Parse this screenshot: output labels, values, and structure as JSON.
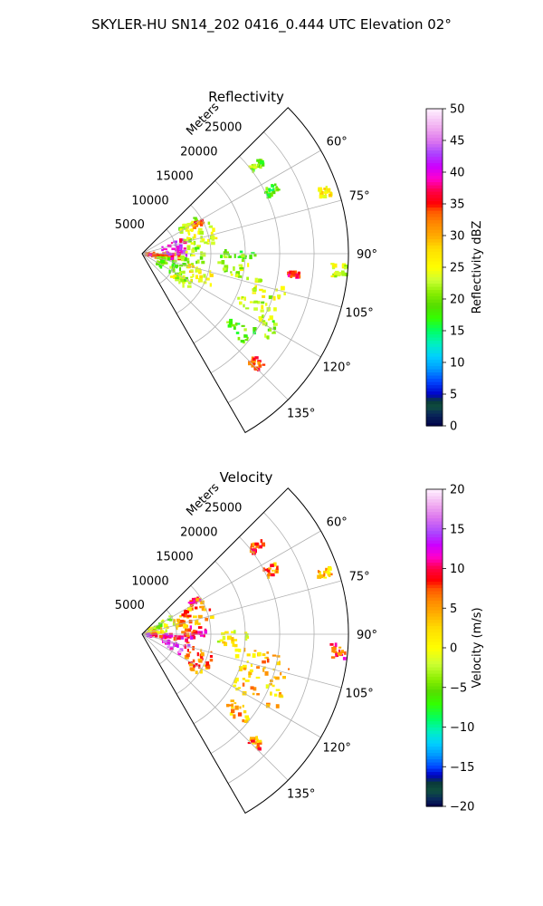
{
  "suptitle": "SKYLER-HU  SN14_202  0416_0.444 UTC Elevation 02°",
  "chart_data": [
    {
      "type": "polar-sector",
      "title": "Reflectivity",
      "theta_range_deg": [
        45,
        150
      ],
      "theta_ticks": [
        "60°",
        "75°",
        "90°",
        "105°",
        "120°",
        "135°"
      ],
      "r_range_m": [
        0,
        30000
      ],
      "r_ticks": [
        "5000",
        "10000",
        "15000",
        "20000",
        "25000"
      ],
      "r_label": "Meters",
      "grid": true,
      "colorbar": {
        "label": "Reflectivity dBZ",
        "range": [
          0,
          50
        ],
        "ticks": [
          "0",
          "5",
          "10",
          "15",
          "20",
          "25",
          "30",
          "35",
          "40",
          "45",
          "50"
        ],
        "stops": [
          {
            "value": 0,
            "color": "#00004a"
          },
          {
            "value": 2,
            "color": "#0a2a5a"
          },
          {
            "value": 3,
            "color": "#0f4f3f"
          },
          {
            "value": 4,
            "color": "#0a3a3a"
          },
          {
            "value": 5,
            "color": "#0000c8"
          },
          {
            "value": 7,
            "color": "#0044ff"
          },
          {
            "value": 9,
            "color": "#0099ff"
          },
          {
            "value": 11,
            "color": "#00d0ff"
          },
          {
            "value": 13,
            "color": "#00f0c0"
          },
          {
            "value": 15,
            "color": "#00ff66"
          },
          {
            "value": 17,
            "color": "#33ff00"
          },
          {
            "value": 19,
            "color": "#55dd00"
          },
          {
            "value": 21,
            "color": "#88ee00"
          },
          {
            "value": 23,
            "color": "#ccff33"
          },
          {
            "value": 25,
            "color": "#ffff00"
          },
          {
            "value": 28,
            "color": "#ffdd00"
          },
          {
            "value": 30,
            "color": "#ffaa00"
          },
          {
            "value": 32,
            "color": "#ff8800"
          },
          {
            "value": 34,
            "color": "#ff5500"
          },
          {
            "value": 35,
            "color": "#ff0000"
          },
          {
            "value": 37,
            "color": "#ff0044"
          },
          {
            "value": 39,
            "color": "#ff00cc"
          },
          {
            "value": 41,
            "color": "#cc00ff"
          },
          {
            "value": 43,
            "color": "#aa44ff"
          },
          {
            "value": 45,
            "color": "#dd77ee"
          },
          {
            "value": 47,
            "color": "#f0aaf0"
          },
          {
            "value": 50,
            "color": "#fff0ff"
          }
        ]
      },
      "regions": [
        {
          "theta": [
            88,
            104
          ],
          "r": [
            500,
            5500
          ],
          "value": 33
        },
        {
          "theta": [
            70,
            92
          ],
          "r": [
            3000,
            6500
          ],
          "value": 41
        },
        {
          "theta": [
            92,
            102
          ],
          "r": [
            1000,
            4500
          ],
          "value": 36
        },
        {
          "theta": [
            62,
            84
          ],
          "r": [
            6500,
            11000
          ],
          "value": 23
        },
        {
          "theta": [
            84,
            99
          ],
          "r": [
            5500,
            9000
          ],
          "value": 21
        },
        {
          "theta": [
            100,
            125
          ],
          "r": [
            2500,
            7500
          ],
          "value": 20
        },
        {
          "theta": [
            104,
            118
          ],
          "r": [
            7000,
            11000
          ],
          "value": 26
        },
        {
          "theta": [
            118,
            128
          ],
          "r": [
            5000,
            9000
          ],
          "value": 24
        },
        {
          "theta": [
            56,
            62
          ],
          "r": [
            6500,
            9500
          ],
          "value": 22
        },
        {
          "theta": [
            60,
            64
          ],
          "r": [
            8500,
            10000
          ],
          "value": 33
        },
        {
          "theta": [
            88,
            94
          ],
          "r": [
            11500,
            16500
          ],
          "value": 19
        },
        {
          "theta": [
            96,
            104
          ],
          "r": [
            11000,
            16000
          ],
          "value": 22
        },
        {
          "theta": [
            102,
            110
          ],
          "r": [
            17000,
            22000
          ],
          "value": 24
        },
        {
          "theta": [
            112,
            118
          ],
          "r": [
            15000,
            21000
          ],
          "value": 23
        },
        {
          "theta": [
            116,
            124
          ],
          "r": [
            19500,
            22500
          ],
          "value": 21
        },
        {
          "theta": [
            93,
            97
          ],
          "r": [
            27500,
            30000
          ],
          "value": 24
        },
        {
          "theta": [
            70,
            73
          ],
          "r": [
            27000,
            29000
          ],
          "value": 27
        },
        {
          "theta": [
            62,
            66
          ],
          "r": [
            20000,
            22000
          ],
          "value": 18
        },
        {
          "theta": [
            51,
            54
          ],
          "r": [
            20000,
            22000
          ],
          "value": 20
        },
        {
          "theta": [
            125,
            132
          ],
          "r": [
            16000,
            20000
          ],
          "value": 19
        },
        {
          "theta": [
            132,
            136
          ],
          "r": [
            22000,
            24000
          ],
          "value": 34
        },
        {
          "theta": [
            97,
            99
          ],
          "r": [
            21500,
            23000
          ],
          "value": 36
        }
      ]
    },
    {
      "type": "polar-sector",
      "title": "Velocity",
      "theta_range_deg": [
        45,
        150
      ],
      "theta_ticks": [
        "60°",
        "75°",
        "90°",
        "105°",
        "120°",
        "135°"
      ],
      "r_range_m": [
        0,
        30000
      ],
      "r_ticks": [
        "5000",
        "10000",
        "15000",
        "20000",
        "25000"
      ],
      "r_label": "Meters",
      "grid": true,
      "colorbar": {
        "label": "Velocity (m/s)",
        "range": [
          -20,
          20
        ],
        "ticks": [
          "−20",
          "−15",
          "−10",
          "−5",
          "0",
          "5",
          "10",
          "15",
          "20"
        ],
        "stops": [
          {
            "value": -20,
            "color": "#00004a"
          },
          {
            "value": -19,
            "color": "#0a2a5a"
          },
          {
            "value": -18,
            "color": "#0f4f3f"
          },
          {
            "value": -17,
            "color": "#0a3a3a"
          },
          {
            "value": -16,
            "color": "#0000c8"
          },
          {
            "value": -15,
            "color": "#0044ff"
          },
          {
            "value": -13.5,
            "color": "#0099ff"
          },
          {
            "value": -12,
            "color": "#00d0ff"
          },
          {
            "value": -10.5,
            "color": "#00f0c0"
          },
          {
            "value": -9,
            "color": "#00ff66"
          },
          {
            "value": -7,
            "color": "#33ff00"
          },
          {
            "value": -5.5,
            "color": "#55dd00"
          },
          {
            "value": -4,
            "color": "#88ee00"
          },
          {
            "value": -2,
            "color": "#ccff33"
          },
          {
            "value": 0,
            "color": "#ffff00"
          },
          {
            "value": 2.5,
            "color": "#ffdd00"
          },
          {
            "value": 4.5,
            "color": "#ffaa00"
          },
          {
            "value": 6,
            "color": "#ff8800"
          },
          {
            "value": 7.5,
            "color": "#ff5500"
          },
          {
            "value": 8.5,
            "color": "#ff0000"
          },
          {
            "value": 10,
            "color": "#ff0044"
          },
          {
            "value": 11.5,
            "color": "#ff00cc"
          },
          {
            "value": 13,
            "color": "#cc00ff"
          },
          {
            "value": 14.5,
            "color": "#aa44ff"
          },
          {
            "value": 16.5,
            "color": "#dd77ee"
          },
          {
            "value": 18,
            "color": "#f0aaf0"
          },
          {
            "value": 20,
            "color": "#fff0ff"
          }
        ]
      },
      "regions": [
        {
          "theta": [
            58,
            74
          ],
          "r": [
            500,
            5000
          ],
          "value": -3
        },
        {
          "theta": [
            74,
            90
          ],
          "r": [
            500,
            4000
          ],
          "value": 1
        },
        {
          "theta": [
            90,
            104
          ],
          "r": [
            500,
            7500
          ],
          "value": 11
        },
        {
          "theta": [
            104,
            117
          ],
          "r": [
            3000,
            7000
          ],
          "value": 14
        },
        {
          "theta": [
            62,
            80
          ],
          "r": [
            5000,
            10500
          ],
          "value": 5
        },
        {
          "theta": [
            80,
            92
          ],
          "r": [
            5500,
            9500
          ],
          "value": 9
        },
        {
          "theta": [
            104,
            126
          ],
          "r": [
            7000,
            11000
          ],
          "value": 6
        },
        {
          "theta": [
            56,
            60
          ],
          "r": [
            8000,
            10000
          ],
          "value": 8
        },
        {
          "theta": [
            88,
            98
          ],
          "r": [
            11000,
            16000
          ],
          "value": 0
        },
        {
          "theta": [
            98,
            108
          ],
          "r": [
            14000,
            22000
          ],
          "value": 4
        },
        {
          "theta": [
            108,
            120
          ],
          "r": [
            15000,
            22500
          ],
          "value": 3
        },
        {
          "theta": [
            93,
            97
          ],
          "r": [
            27500,
            30000
          ],
          "value": 8
        },
        {
          "theta": [
            70,
            73
          ],
          "r": [
            27000,
            29000
          ],
          "value": 3
        },
        {
          "theta": [
            62,
            66
          ],
          "r": [
            20000,
            22000
          ],
          "value": 6
        },
        {
          "theta": [
            51,
            54
          ],
          "r": [
            20000,
            22000
          ],
          "value": 7
        },
        {
          "theta": [
            125,
            132
          ],
          "r": [
            16000,
            20000
          ],
          "value": 4
        },
        {
          "theta": [
            132,
            136
          ],
          "r": [
            22000,
            24000
          ],
          "value": 6
        }
      ]
    }
  ]
}
